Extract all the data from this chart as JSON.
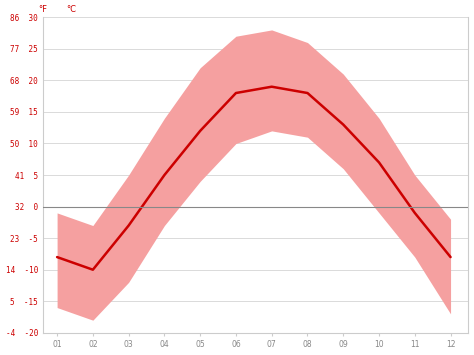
{
  "months": [
    1,
    2,
    3,
    4,
    5,
    6,
    7,
    8,
    9,
    10,
    11,
    12
  ],
  "month_labels": [
    "01",
    "02",
    "03",
    "04",
    "05",
    "06",
    "07",
    "08",
    "09",
    "10",
    "11",
    "12"
  ],
  "avg_temp": [
    -8,
    -10,
    -3,
    5,
    12,
    18,
    19,
    18,
    13,
    7,
    -1,
    -8
  ],
  "band_upper": [
    -1,
    -3,
    5,
    14,
    22,
    27,
    28,
    26,
    21,
    14,
    5,
    -2
  ],
  "band_lower": [
    -16,
    -18,
    -12,
    -3,
    4,
    10,
    12,
    11,
    6,
    -1,
    -8,
    -17
  ],
  "line_color": "#cc0000",
  "band_color": "#f5a0a0",
  "zero_line_color": "#888888",
  "grid_color": "#cccccc",
  "background_color": "#ffffff",
  "ylim": [
    -20,
    30
  ],
  "yticks_c": [
    -20,
    -15,
    -10,
    -5,
    0,
    5,
    10,
    15,
    20,
    25,
    30
  ],
  "yticks_f": [
    -4,
    5,
    14,
    23,
    32,
    41,
    50,
    59,
    68,
    77,
    86
  ],
  "ylabel_c": "°C",
  "ylabel_f": "°F",
  "label_color": "#cc0000",
  "tick_color": "#888888",
  "spine_color": "#cccccc"
}
